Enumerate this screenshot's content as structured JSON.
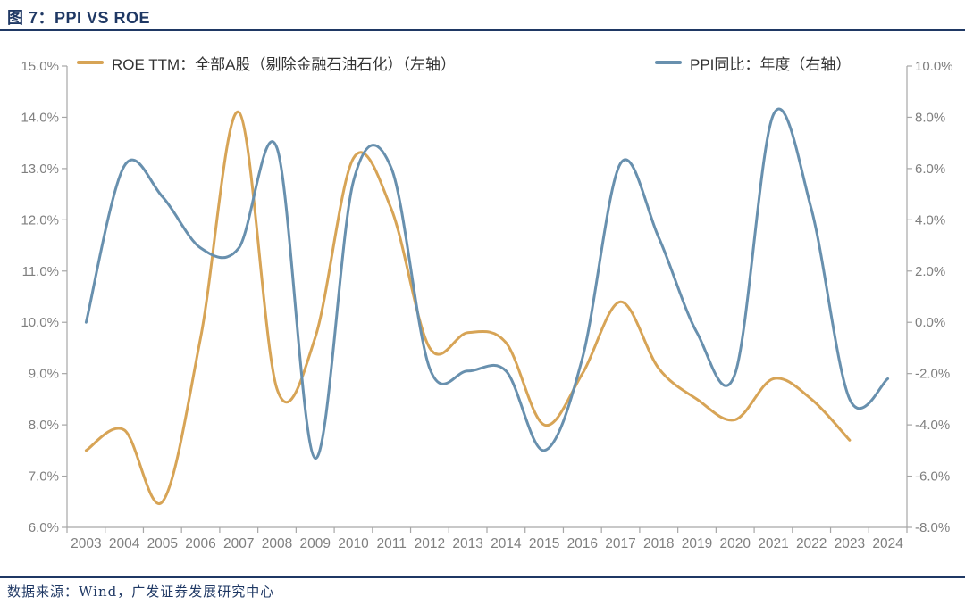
{
  "page": {
    "title": "图 7：PPI VS ROE",
    "source": "数据来源：Wind，广发证券发展研究中心"
  },
  "legend": [
    {
      "label": "ROE TTM：全部A股（剔除金融石油石化）（左轴）",
      "color": "#D7A456"
    },
    {
      "label": "PPI同比：年度（右轴）",
      "color": "#6890AE"
    }
  ],
  "colors": {
    "accent_navy": "#1F3864",
    "axis_line": "#A6A6A6",
    "tick_label": "#7F7F7F",
    "roe_line": "#D7A456",
    "ppi_line": "#6890AE",
    "background": "#FFFFFF"
  },
  "chart_data": {
    "type": "line",
    "smooth": true,
    "grid": false,
    "legend_position": "top",
    "title": "图 7：PPI VS ROE",
    "categories": [
      2003,
      2004,
      2005,
      2006,
      2007,
      2008,
      2009,
      2010,
      2011,
      2012,
      2013,
      2014,
      2015,
      2016,
      2017,
      2018,
      2019,
      2020,
      2021,
      2022,
      2023,
      2024
    ],
    "series": [
      {
        "name": "ROE TTM：全部A股（剔除金融石油石化）（左轴）",
        "axis": "left",
        "color": "#D7A456",
        "values": [
          7.5,
          7.9,
          6.5,
          9.7,
          14.1,
          8.7,
          9.7,
          13.2,
          12.2,
          9.5,
          9.8,
          9.6,
          8.0,
          9.0,
          10.4,
          9.1,
          8.5,
          8.1,
          8.9,
          8.5,
          7.7
        ]
      },
      {
        "name": "PPI同比：年度（右轴）",
        "axis": "right",
        "color": "#6890AE",
        "values": [
          0.0,
          6.1,
          4.9,
          2.9,
          2.9,
          6.8,
          -5.3,
          5.5,
          6.0,
          -1.8,
          -1.9,
          -1.9,
          -5.0,
          -1.4,
          6.2,
          3.3,
          -0.4,
          -2.0,
          8.1,
          4.4,
          -3.0,
          -2.2
        ]
      }
    ],
    "left_axis": {
      "min": 6,
      "max": 15,
      "step": 1,
      "decimals": 1,
      "suffix": "%",
      "tick_labels": [
        "15.0%",
        "14.0%",
        "13.0%",
        "12.0%",
        "11.0%",
        "10.0%",
        "9.0%",
        "8.0%",
        "7.0%",
        "6.0%"
      ]
    },
    "right_axis": {
      "min": -8,
      "max": 10,
      "step": 2,
      "decimals": 1,
      "suffix": "%",
      "tick_labels": [
        "10.0%",
        "8.0%",
        "6.0%",
        "4.0%",
        "2.0%",
        "0.0%",
        "-2.0%",
        "-4.0%",
        "-6.0%",
        "-8.0%"
      ]
    }
  }
}
